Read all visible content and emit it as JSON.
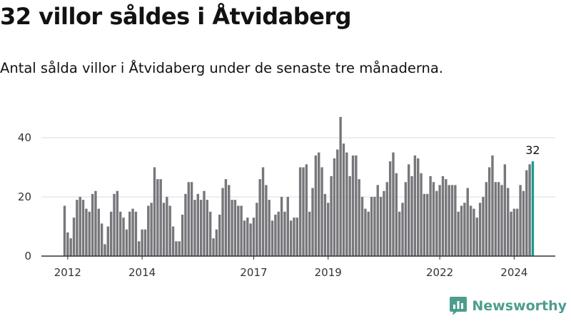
{
  "header": {
    "title": "32 villor såldes i Åtvidaberg",
    "subtitle": "Antal sålda villor i Åtvidaberg under de senaste tre månaderna."
  },
  "chart_data": {
    "type": "bar",
    "title": "32 villor såldes i Åtvidaberg",
    "subtitle": "Antal sålda villor i Åtvidaberg under de senaste tre månaderna.",
    "xlabel": "",
    "ylabel": "",
    "ylim": [
      0,
      47
    ],
    "grid": true,
    "y_ticks": [
      0,
      20,
      40
    ],
    "x_tick_labels": [
      "2012",
      "2014",
      "2017",
      "2019",
      "2022",
      "2024"
    ],
    "x_tick_indices": [
      1,
      25,
      61,
      85,
      121,
      145
    ],
    "values": [
      17,
      8,
      6,
      13,
      19,
      20,
      19,
      16,
      15,
      21,
      22,
      16,
      11,
      4,
      10,
      15,
      21,
      22,
      15,
      13,
      9,
      15,
      16,
      15,
      5,
      9,
      9,
      17,
      18,
      30,
      26,
      26,
      18,
      20,
      17,
      10,
      5,
      5,
      14,
      21,
      25,
      25,
      19,
      21,
      19,
      22,
      19,
      15,
      6,
      9,
      14,
      23,
      26,
      24,
      19,
      19,
      17,
      17,
      12,
      13,
      11,
      13,
      18,
      26,
      30,
      24,
      19,
      12,
      14,
      15,
      20,
      15,
      20,
      12,
      13,
      13,
      30,
      30,
      31,
      15,
      23,
      34,
      35,
      30,
      21,
      18,
      27,
      33,
      36,
      47,
      38,
      35,
      27,
      34,
      34,
      26,
      20,
      16,
      15,
      20,
      20,
      24,
      20,
      22,
      25,
      32,
      35,
      28,
      15,
      18,
      25,
      31,
      27,
      34,
      33,
      28,
      21,
      21,
      27,
      25,
      22,
      24,
      27,
      26,
      24,
      24,
      24,
      15,
      17,
      18,
      23,
      17,
      16,
      13,
      18,
      20,
      25,
      30,
      34,
      25,
      25,
      24,
      31,
      23,
      15,
      16,
      16,
      24,
      22,
      29,
      31,
      32
    ],
    "highlight_last": true,
    "callout_label": "32",
    "colors": {
      "bar": "#77767b",
      "highlight": "#1a9c90",
      "grid": "#dddddd",
      "axis": "#333333"
    }
  },
  "branding": {
    "logo_name": "Newsworthy",
    "colors": {
      "logo": "#4d9d8f"
    },
    "icon": "bar-chart-logo-icon"
  }
}
